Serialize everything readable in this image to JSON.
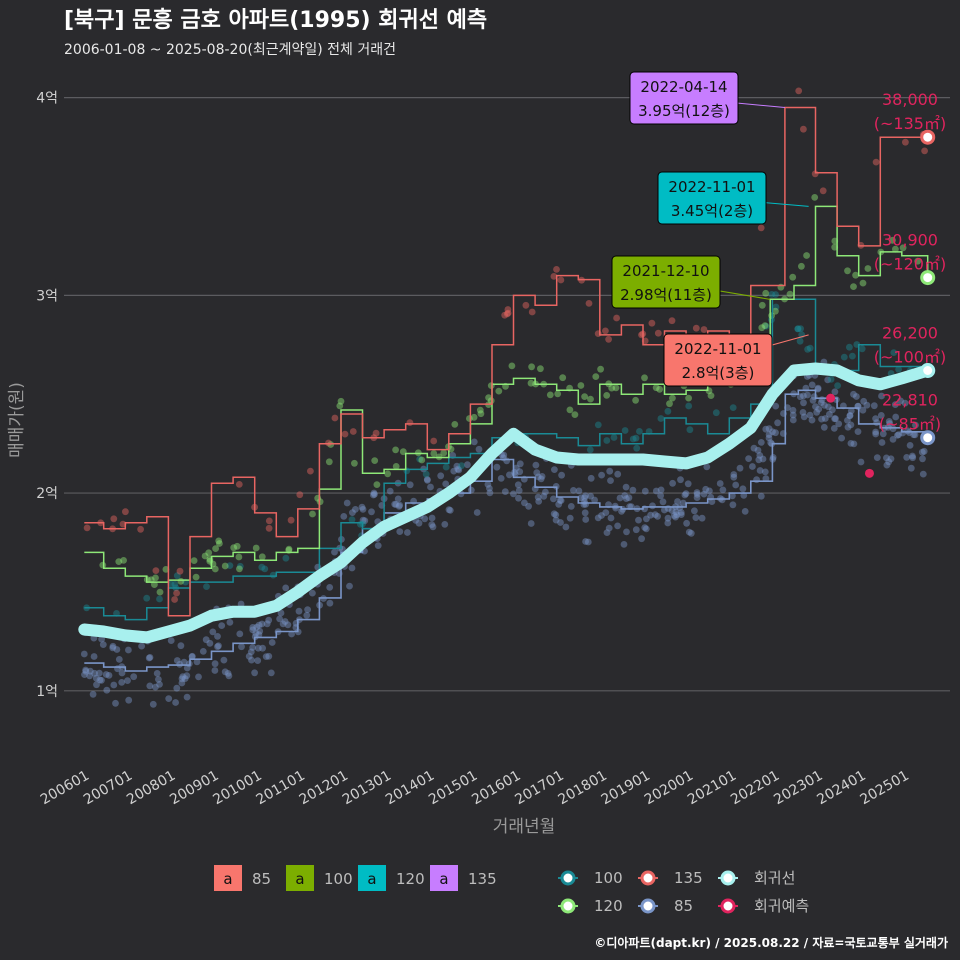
{
  "chart_data": {
    "type": "scatter",
    "title": "[북구] 문흥 금호 아파트(1995) 회귀선 예측",
    "subtitle": "2006-01-08 ~ 2025-08-20(최근계약일) 전체 거래건",
    "xlabel": "거래년월",
    "ylabel": "매매가(원)",
    "ylim": [
      0.65,
      4.15
    ],
    "x_range": [
      "2006-01",
      "2025-12"
    ],
    "x_ticks": [
      "200601",
      "200701",
      "200801",
      "200901",
      "201001",
      "201101",
      "201201",
      "201301",
      "201401",
      "201501",
      "201601",
      "201701",
      "201801",
      "201901",
      "202001",
      "202101",
      "202201",
      "202301",
      "202401",
      "202501"
    ],
    "y_ticks": [
      {
        "value": 1,
        "label": "1억"
      },
      {
        "value": 2,
        "label": "2억"
      },
      {
        "value": 3,
        "label": "3억"
      },
      {
        "value": 4,
        "label": "4억"
      }
    ],
    "grid": true,
    "colors": {
      "85": "#7a95c8",
      "100": "#1a8a95",
      "120": "#8ee878",
      "135": "#e86562",
      "trend": "#a8f0ee",
      "forecast": "#e0245e"
    },
    "series": [
      {
        "name": "85",
        "points": [
          [
            2006.05,
            1.14
          ],
          [
            2006.5,
            1.12
          ],
          [
            2007.0,
            1.1
          ],
          [
            2007.5,
            1.12
          ],
          [
            2008.0,
            1.13
          ],
          [
            2008.5,
            1.16
          ],
          [
            2009.0,
            1.2
          ],
          [
            2009.5,
            1.24
          ],
          [
            2010.0,
            1.27
          ],
          [
            2010.5,
            1.3
          ],
          [
            2011.0,
            1.36
          ],
          [
            2011.5,
            1.47
          ],
          [
            2012.0,
            1.7
          ],
          [
            2012.5,
            1.82
          ],
          [
            2013.0,
            1.9
          ],
          [
            2013.5,
            1.95
          ],
          [
            2014.0,
            1.97
          ],
          [
            2014.5,
            2.0
          ],
          [
            2015.0,
            2.06
          ],
          [
            2015.5,
            2.17
          ],
          [
            2016.0,
            2.08
          ],
          [
            2016.5,
            2.03
          ],
          [
            2017.0,
            1.98
          ],
          [
            2017.5,
            1.95
          ],
          [
            2018.0,
            1.93
          ],
          [
            2018.5,
            1.92
          ],
          [
            2019.0,
            1.93
          ],
          [
            2019.5,
            1.93
          ],
          [
            2020.0,
            1.95
          ],
          [
            2020.5,
            1.97
          ],
          [
            2021.0,
            2.0
          ],
          [
            2021.5,
            2.06
          ],
          [
            2022.0,
            2.25
          ],
          [
            2022.3,
            2.5
          ],
          [
            2022.6,
            2.52
          ],
          [
            2023.0,
            2.48
          ],
          [
            2023.5,
            2.43
          ],
          [
            2024.0,
            2.35
          ],
          [
            2024.5,
            2.33
          ],
          [
            2025.0,
            2.31
          ],
          [
            2025.6,
            2.28
          ]
        ]
      },
      {
        "name": "100",
        "points": [
          [
            2006.05,
            1.42
          ],
          [
            2006.5,
            1.38
          ],
          [
            2007.0,
            1.36
          ],
          [
            2007.5,
            1.42
          ],
          [
            2008.0,
            1.52
          ],
          [
            2008.5,
            1.55
          ],
          [
            2009.5,
            1.58
          ],
          [
            2010.5,
            1.6
          ],
          [
            2011.5,
            1.72
          ],
          [
            2012.0,
            1.85
          ],
          [
            2012.5,
            1.82
          ],
          [
            2013.0,
            2.05
          ],
          [
            2013.5,
            2.12
          ],
          [
            2014.0,
            2.15
          ],
          [
            2014.5,
            2.18
          ],
          [
            2015.0,
            2.2
          ],
          [
            2015.5,
            2.28
          ],
          [
            2016.0,
            2.3
          ],
          [
            2016.5,
            2.3
          ],
          [
            2017.0,
            2.28
          ],
          [
            2017.5,
            2.24
          ],
          [
            2018.0,
            2.3
          ],
          [
            2018.5,
            2.25
          ],
          [
            2019.0,
            2.3
          ],
          [
            2019.5,
            2.38
          ],
          [
            2020.0,
            2.35
          ],
          [
            2020.5,
            2.3
          ],
          [
            2021.0,
            2.38
          ],
          [
            2021.5,
            2.45
          ],
          [
            2022.0,
            2.98
          ],
          [
            2022.3,
            2.98
          ],
          [
            2023.0,
            2.62
          ],
          [
            2023.5,
            2.62
          ],
          [
            2024.0,
            2.75
          ],
          [
            2024.5,
            2.64
          ],
          [
            2025.6,
            2.62
          ]
        ]
      },
      {
        "name": "120",
        "points": [
          [
            2006.05,
            1.7
          ],
          [
            2006.5,
            1.62
          ],
          [
            2007.0,
            1.58
          ],
          [
            2007.5,
            1.55
          ],
          [
            2008.0,
            1.56
          ],
          [
            2008.5,
            1.62
          ],
          [
            2009.0,
            1.68
          ],
          [
            2009.5,
            1.7
          ],
          [
            2010.0,
            1.66
          ],
          [
            2010.5,
            1.7
          ],
          [
            2011.0,
            1.72
          ],
          [
            2011.5,
            2.02
          ],
          [
            2012.0,
            2.42
          ],
          [
            2012.5,
            2.1
          ],
          [
            2013.0,
            2.12
          ],
          [
            2013.5,
            2.2
          ],
          [
            2014.0,
            2.18
          ],
          [
            2014.5,
            2.25
          ],
          [
            2015.0,
            2.35
          ],
          [
            2015.5,
            2.55
          ],
          [
            2016.0,
            2.58
          ],
          [
            2016.5,
            2.55
          ],
          [
            2017.0,
            2.52
          ],
          [
            2017.5,
            2.45
          ],
          [
            2018.0,
            2.55
          ],
          [
            2018.5,
            2.5
          ],
          [
            2019.0,
            2.55
          ],
          [
            2019.5,
            2.5
          ],
          [
            2020.0,
            2.52
          ],
          [
            2020.5,
            2.58
          ],
          [
            2021.0,
            2.62
          ],
          [
            2021.5,
            2.75
          ],
          [
            2021.95,
            2.98
          ],
          [
            2022.5,
            3.05
          ],
          [
            2023.0,
            3.45
          ],
          [
            2023.5,
            3.2
          ],
          [
            2024.0,
            3.1
          ],
          [
            2024.5,
            3.22
          ],
          [
            2025.0,
            3.2
          ],
          [
            2025.6,
            3.09
          ]
        ]
      },
      {
        "name": "135",
        "points": [
          [
            2006.05,
            1.85
          ],
          [
            2006.5,
            1.82
          ],
          [
            2007.0,
            1.85
          ],
          [
            2007.5,
            1.88
          ],
          [
            2008.0,
            1.38
          ],
          [
            2008.5,
            1.78
          ],
          [
            2009.0,
            2.05
          ],
          [
            2009.5,
            2.08
          ],
          [
            2010.0,
            1.9
          ],
          [
            2010.5,
            1.78
          ],
          [
            2011.0,
            1.92
          ],
          [
            2011.5,
            2.25
          ],
          [
            2012.0,
            2.4
          ],
          [
            2012.5,
            2.28
          ],
          [
            2013.0,
            2.32
          ],
          [
            2013.5,
            2.35
          ],
          [
            2014.0,
            2.22
          ],
          [
            2014.5,
            2.3
          ],
          [
            2015.0,
            2.45
          ],
          [
            2015.5,
            2.75
          ],
          [
            2016.0,
            3.0
          ],
          [
            2016.5,
            2.95
          ],
          [
            2017.0,
            3.1
          ],
          [
            2017.5,
            3.08
          ],
          [
            2018.0,
            2.8
          ],
          [
            2018.5,
            2.85
          ],
          [
            2019.0,
            2.75
          ],
          [
            2019.5,
            2.82
          ],
          [
            2020.0,
            2.78
          ],
          [
            2020.5,
            2.82
          ],
          [
            2021.0,
            2.8
          ],
          [
            2021.5,
            3.05
          ],
          [
            2022.29,
            3.95
          ],
          [
            2022.6,
            3.95
          ],
          [
            2023.0,
            3.62
          ],
          [
            2023.5,
            3.35
          ],
          [
            2024.0,
            3.25
          ],
          [
            2024.5,
            3.8
          ],
          [
            2025.6,
            3.8
          ]
        ]
      },
      {
        "name": "회귀선",
        "points": [
          [
            2006.05,
            1.31
          ],
          [
            2006.5,
            1.3
          ],
          [
            2007.0,
            1.28
          ],
          [
            2007.5,
            1.27
          ],
          [
            2008.0,
            1.3
          ],
          [
            2008.5,
            1.33
          ],
          [
            2009.0,
            1.38
          ],
          [
            2009.5,
            1.4
          ],
          [
            2010.0,
            1.4
          ],
          [
            2010.5,
            1.43
          ],
          [
            2011.0,
            1.5
          ],
          [
            2011.5,
            1.58
          ],
          [
            2012.0,
            1.65
          ],
          [
            2012.5,
            1.75
          ],
          [
            2013.0,
            1.83
          ],
          [
            2013.5,
            1.88
          ],
          [
            2014.0,
            1.93
          ],
          [
            2014.5,
            2.0
          ],
          [
            2015.0,
            2.08
          ],
          [
            2015.5,
            2.2
          ],
          [
            2016.0,
            2.3
          ],
          [
            2016.5,
            2.22
          ],
          [
            2017.0,
            2.18
          ],
          [
            2017.5,
            2.17
          ],
          [
            2018.0,
            2.17
          ],
          [
            2018.5,
            2.17
          ],
          [
            2019.0,
            2.17
          ],
          [
            2019.5,
            2.16
          ],
          [
            2020.0,
            2.15
          ],
          [
            2020.5,
            2.18
          ],
          [
            2021.0,
            2.25
          ],
          [
            2021.5,
            2.33
          ],
          [
            2022.0,
            2.5
          ],
          [
            2022.5,
            2.62
          ],
          [
            2023.0,
            2.63
          ],
          [
            2023.5,
            2.62
          ],
          [
            2024.0,
            2.57
          ],
          [
            2024.5,
            2.55
          ],
          [
            2025.0,
            2.58
          ],
          [
            2025.6,
            2.62
          ]
        ]
      },
      {
        "name": "회귀예측",
        "points": [
          [
            2024.25,
            2.1
          ],
          [
            2023.35,
            2.48
          ]
        ]
      }
    ],
    "callouts": [
      {
        "date": "2022-04-14",
        "price": "3.95억(12층)",
        "type": "135",
        "x": 2022.29,
        "y": 3.95,
        "fill": "#c77dff"
      },
      {
        "date": "2022-11-01",
        "price": "3.45억(2층)",
        "type": "120",
        "x": 2022.84,
        "y": 3.45,
        "fill": "#00bcc4"
      },
      {
        "date": "2021-12-10",
        "price": "2.98억(11층)",
        "type": "100",
        "x": 2021.94,
        "y": 2.98,
        "fill": "#7cae00"
      },
      {
        "date": "2022-11-01",
        "price": "2.8억(3층)",
        "type": "85",
        "x": 2022.84,
        "y": 2.8,
        "fill": "#f8766d"
      }
    ],
    "end_labels": [
      {
        "value": "38,000",
        "area": "(~135㎡)",
        "y": 3.8,
        "color": "#e86562"
      },
      {
        "value": "30,900",
        "area": "(~120㎡)",
        "y": 3.09,
        "color": "#8ee878"
      },
      {
        "value": "26,200",
        "area": "(~100㎡)",
        "y": 2.62,
        "color": "#1a8a95"
      },
      {
        "value": "22,810",
        "area": "(~85㎡)",
        "y": 2.28,
        "color": "#7a95c8"
      }
    ],
    "legend_placement": "bottom",
    "legend_boxes": [
      {
        "glyph": "a",
        "label": "85",
        "fill": "#f8766d"
      },
      {
        "glyph": "a",
        "label": "100",
        "fill": "#7cae00"
      },
      {
        "glyph": "a",
        "label": "120",
        "fill": "#00bcc4"
      },
      {
        "glyph": "a",
        "label": "135",
        "fill": "#c77dff"
      }
    ],
    "legend_lines": [
      {
        "label": "100",
        "color": "#1a8a95"
      },
      {
        "label": "135",
        "color": "#e86562"
      },
      {
        "label": "회귀선",
        "color": "#a8f0ee"
      },
      {
        "label": "120",
        "color": "#8ee878"
      },
      {
        "label": "85",
        "color": "#7a95c8"
      },
      {
        "label": "회귀예측",
        "color": "#e0245e"
      }
    ]
  },
  "credit": "©디아파트(dapt.kr) / 2025.08.22 / 자료=국토교통부 실거래가"
}
